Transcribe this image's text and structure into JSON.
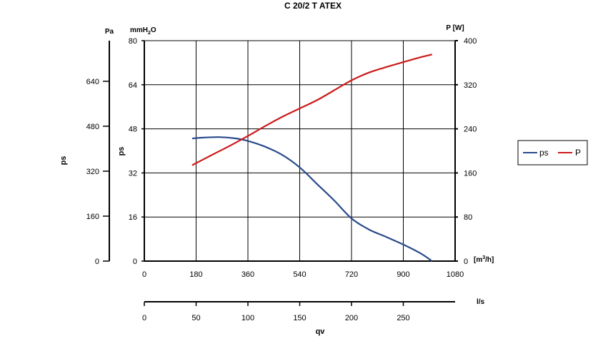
{
  "chart_data": {
    "type": "line",
    "title": "C 20/2 T ATEX",
    "x_axis": {
      "unit": "[m³/h]",
      "unit_main": "[m",
      "unit_sup": "3",
      "unit_tail": "/h]",
      "range": [
        0,
        1080
      ],
      "ticks": [
        0,
        180,
        360,
        540,
        720,
        900,
        1080
      ]
    },
    "x_axis_ls": {
      "unit": "l/s",
      "range": [
        0,
        300
      ],
      "ticks": [
        0,
        50,
        100,
        150,
        200,
        250
      ],
      "label": "qv"
    },
    "y_axis_left_pa": {
      "unit": "Pa",
      "label": "ps",
      "range": [
        0,
        784.5
      ],
      "ticks": [
        0,
        160,
        320,
        480,
        640
      ]
    },
    "y_axis_left_mmh2o": {
      "unit": "mmH2O",
      "unit_main": "mmH",
      "unit_sub": "2",
      "unit_tail": "O",
      "label": "ps",
      "range": [
        0,
        80
      ],
      "ticks": [
        0,
        16,
        32,
        48,
        64,
        80
      ]
    },
    "y_axis_right": {
      "unit": "P [W]",
      "range": [
        0,
        400
      ],
      "ticks": [
        0,
        80,
        160,
        240,
        320,
        400
      ]
    },
    "grid": true,
    "legend_position": "right",
    "legend": [
      "ps",
      "P"
    ],
    "series": [
      {
        "name": "ps",
        "color": "#2a4a8c",
        "axis": "mmH2O",
        "x": [
          166,
          200,
          260,
          320,
          360,
          420,
          480,
          540,
          600,
          660,
          720,
          780,
          840,
          900,
          960,
          1000
        ],
        "y": [
          44.5,
          44.8,
          45.0,
          44.5,
          43.6,
          41.5,
          38.5,
          34.0,
          28.0,
          22.0,
          15.5,
          11.5,
          8.8,
          6.0,
          2.8,
          0
        ]
      },
      {
        "name": "P",
        "color": "#cc1a1a",
        "axis": "P [W]",
        "x": [
          166,
          240,
          300,
          360,
          420,
          480,
          540,
          600,
          660,
          720,
          780,
          840,
          900,
          960,
          1000
        ],
        "y": [
          174,
          194,
          210,
          227,
          245,
          262,
          277,
          292,
          310,
          328,
          342,
          352,
          361,
          370,
          375
        ]
      }
    ]
  }
}
